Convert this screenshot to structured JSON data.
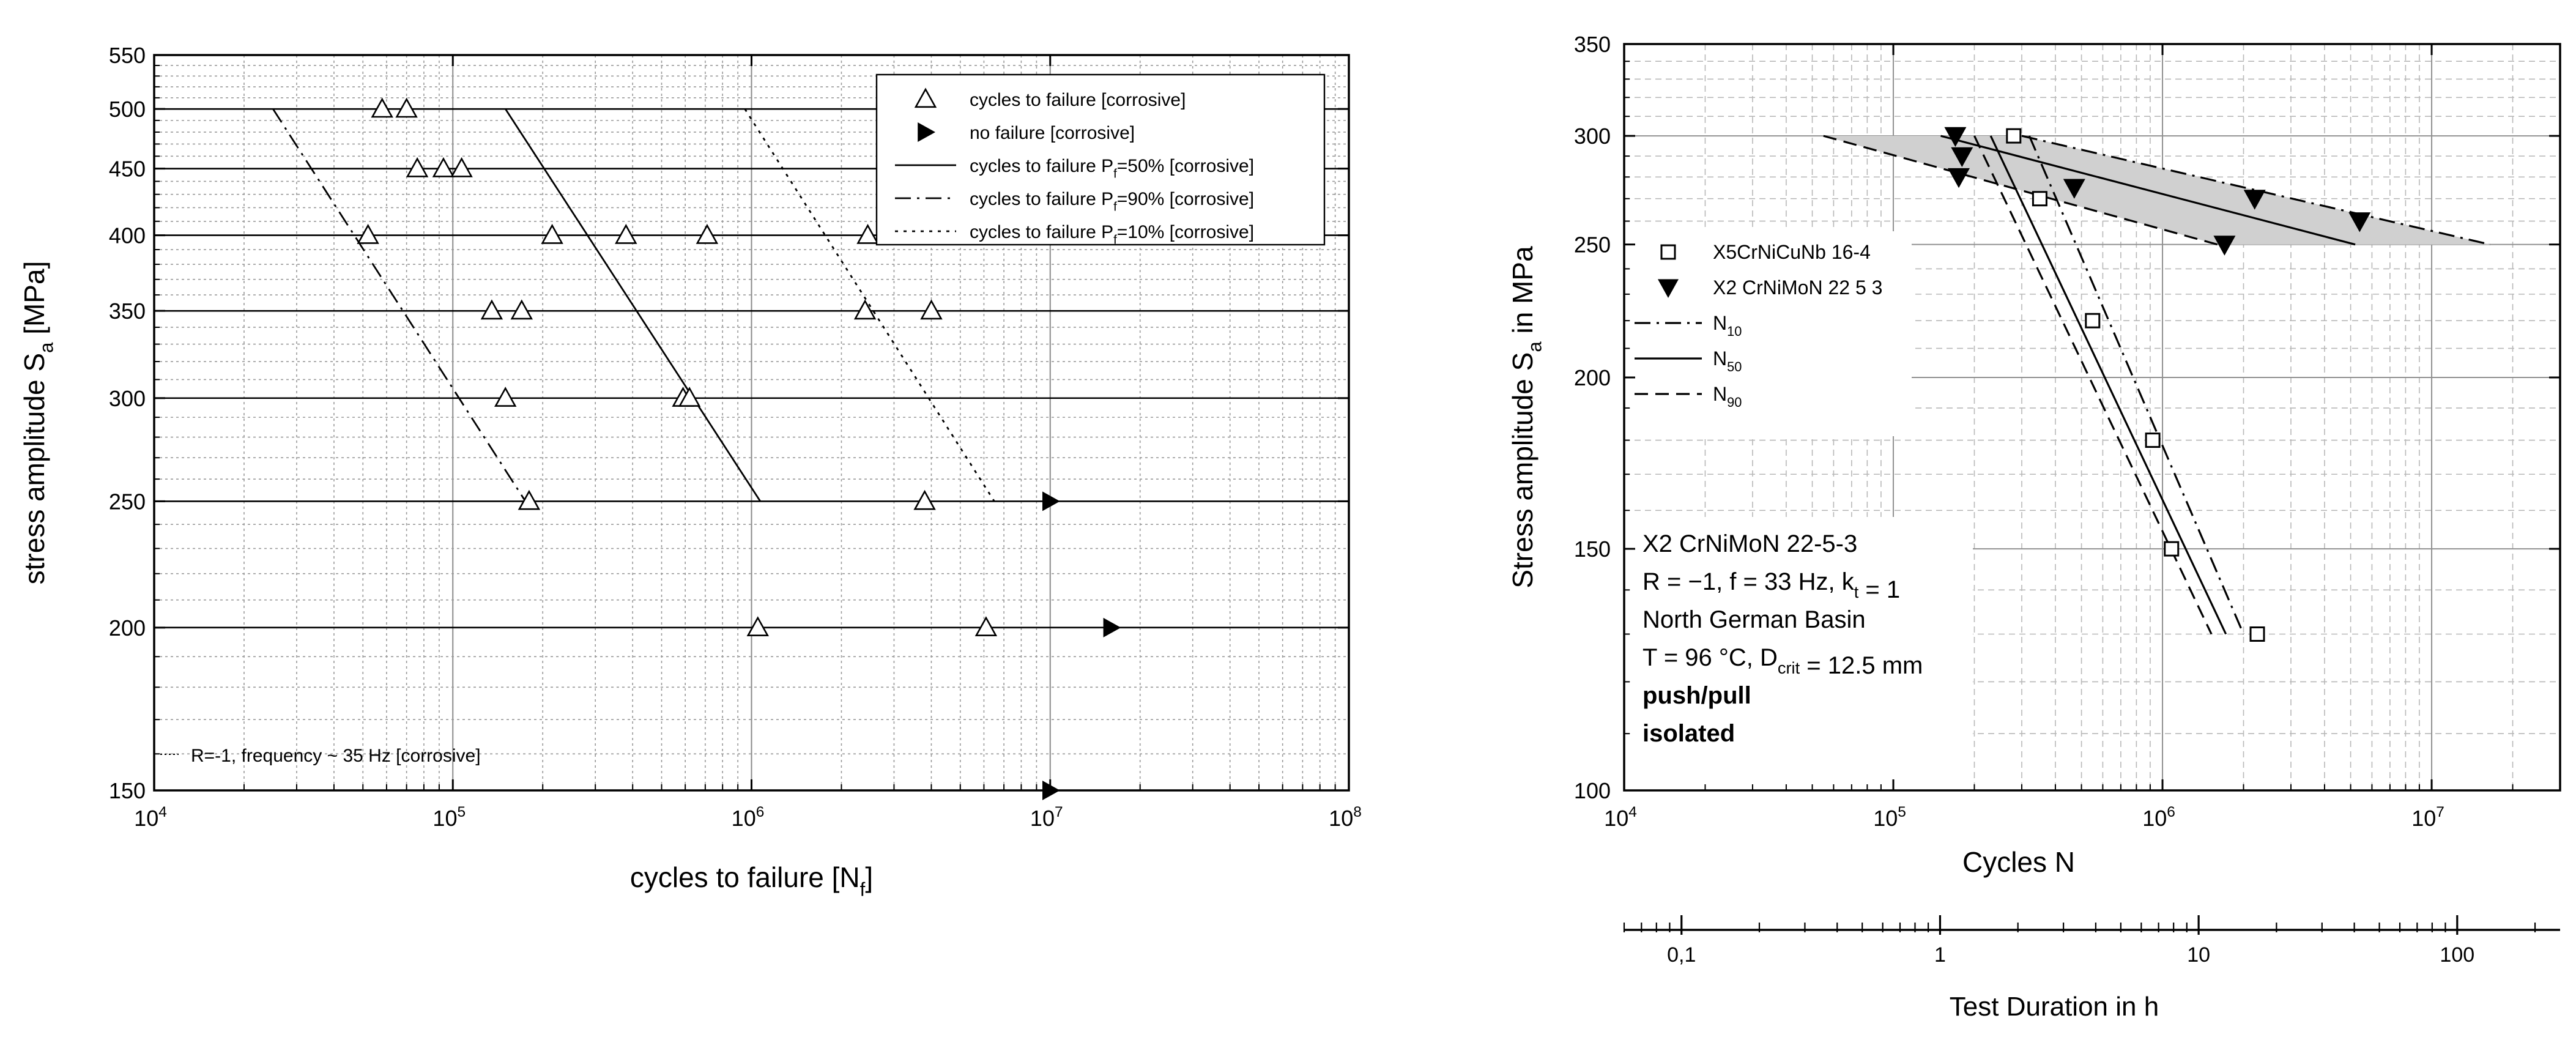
{
  "chart_data": [
    {
      "type": "scatter",
      "xscale": "log",
      "yscale": "log",
      "xlim": [
        10000,
        100000000
      ],
      "ylim": [
        150,
        550
      ],
      "grid": true,
      "xlabel": "cycles to failure [N",
      "xlabel_sub": "f",
      "xlabel_end": "]",
      "ylabel": "stress amplitude S",
      "ylabel_sub": "a",
      "ylabel_end": " [MPa]",
      "xticks": [
        {
          "v": 10000,
          "b": "10",
          "e": "4"
        },
        {
          "v": 100000,
          "b": "10",
          "e": "5"
        },
        {
          "v": 1000000,
          "b": "10",
          "e": "6"
        },
        {
          "v": 10000000,
          "b": "10",
          "e": "7"
        },
        {
          "v": 100000000,
          "b": "10",
          "e": "8"
        }
      ],
      "yticks": [
        "150",
        "200",
        "250",
        "300",
        "350",
        "400",
        "450",
        "500",
        "550"
      ],
      "hlines": [
        500,
        450,
        400,
        350,
        300,
        250,
        200
      ],
      "series": [
        {
          "name": "cycles to failure [corrosive]",
          "marker": "triangle-open",
          "points": [
            [
              58000,
              500
            ],
            [
              70000,
              500
            ],
            [
              76000,
              450
            ],
            [
              93000,
              450
            ],
            [
              107000,
              450
            ],
            [
              52000,
              400
            ],
            [
              215000,
              400
            ],
            [
              380000,
              400
            ],
            [
              710000,
              400
            ],
            [
              2450000,
              400
            ],
            [
              135000,
              350
            ],
            [
              170000,
              350
            ],
            [
              2400000,
              350
            ],
            [
              4000000,
              350
            ],
            [
              150000,
              300
            ],
            [
              590000,
              300
            ],
            [
              620000,
              300
            ],
            [
              180000,
              250
            ],
            [
              3800000,
              250
            ],
            [
              1050000,
              200
            ],
            [
              6100000,
              200
            ]
          ]
        },
        {
          "name": "no failure [corrosive]",
          "marker": "triangle-right-filled",
          "points": [
            [
              10000000,
              250
            ],
            [
              16000000,
              200
            ],
            [
              10000000,
              150
            ]
          ]
        },
        {
          "name": "cycles to failure P",
          "sub": "f",
          "tail": "=50% [corrosive]",
          "style": "solid",
          "points": [
            [
              150000,
              500
            ],
            [
              1070000,
              250
            ]
          ]
        },
        {
          "name": "cycles to failure P",
          "sub": "f",
          "tail": "=90% [corrosive]",
          "style": "dashdot",
          "points": [
            [
              25000,
              500
            ],
            [
              175000,
              250
            ]
          ]
        },
        {
          "name": "cycles to failure P",
          "sub": "f",
          "tail": "=10% [corrosive]",
          "style": "dotted",
          "points": [
            [
              950000,
              500
            ],
            [
              6500000,
              250
            ]
          ]
        }
      ],
      "legend_position": "top-right",
      "annotation": "R=-1, frequency ~ 35 Hz [corrosive]"
    },
    {
      "type": "line",
      "xscale": "log",
      "yscale": "log",
      "xlim": [
        10000,
        30000000
      ],
      "ylim": [
        100,
        350
      ],
      "grid": true,
      "xlabel": "Cycles N",
      "ylabel": "Stress amplitude S",
      "ylabel_sub": "a",
      "ylabel_end": " in MPa",
      "xticks": [
        {
          "v": 10000,
          "b": "10",
          "e": "4"
        },
        {
          "v": 100000,
          "b": "10",
          "e": "5"
        },
        {
          "v": 1000000,
          "b": "10",
          "e": "6"
        },
        {
          "v": 10000000,
          "b": "10",
          "e": "7"
        }
      ],
      "yticks": [
        "100",
        "150",
        "200",
        "250",
        "300",
        "350"
      ],
      "secondary_axis": {
        "label": "Test Duration in h",
        "ticks": [
          "0,1",
          "1",
          "10",
          "100"
        ],
        "xlim": [
          0.06,
          250
        ]
      },
      "band": {
        "upper": [
          [
            300000,
            300
          ],
          [
            16500000,
            250
          ]
        ],
        "lower": [
          [
            55000,
            300
          ],
          [
            1600000,
            250
          ]
        ]
      },
      "series": [
        {
          "name": "X5CrNiCuNb 16-4",
          "marker": "square-open",
          "points": [
            [
              280000,
              300
            ],
            [
              350000,
              270
            ],
            [
              550000,
              220
            ],
            [
              920000,
              180
            ],
            [
              1080000,
              150
            ],
            [
              2250000,
              130
            ]
          ]
        },
        {
          "name": "X2 CrNiMoN 22 5 3",
          "marker": "triangle-down-filled",
          "points": [
            [
              170000,
              300
            ],
            [
              180000,
              290
            ],
            [
              175000,
              280
            ],
            [
              470000,
              275
            ],
            [
              2200000,
              270
            ],
            [
              5400000,
              260
            ],
            [
              1700000,
              250
            ]
          ]
        },
        {
          "name": "N",
          "sub": "10",
          "style": "dashdot",
          "line": [
            [
              [
                320000,
                300
              ],
              [
                2000000,
                130
              ]
            ],
            [
              [
                300000,
                300
              ],
              [
                16500000,
                250
              ]
            ]
          ]
        },
        {
          "name": "N",
          "sub": "50",
          "style": "solid",
          "line": [
            [
              [
                230000,
                300
              ],
              [
                1720000,
                130
              ]
            ],
            [
              [
                150000,
                300
              ],
              [
                5200000,
                250
              ]
            ]
          ]
        },
        {
          "name": "N",
          "sub": "90",
          "style": "dashed",
          "line": [
            [
              [
                200000,
                300
              ],
              [
                1520000,
                130
              ]
            ],
            [
              [
                55000,
                300
              ],
              [
                1600000,
                250
              ]
            ]
          ]
        }
      ],
      "legend_position": "left",
      "annotations": [
        {
          "parts": [
            {
              "t": "X2 CrNiMoN 22-5-3"
            }
          ]
        },
        {
          "parts": [
            {
              "t": "R = −1, f = 33 Hz, k"
            },
            {
              "t": "t",
              "sub": true
            },
            {
              "t": " = 1"
            }
          ]
        },
        {
          "parts": [
            {
              "t": "North German Basin"
            }
          ]
        },
        {
          "parts": [
            {
              "t": "T = 96 °C, D"
            },
            {
              "t": "crit",
              "sub": true
            },
            {
              "t": " = 12.5 mm"
            }
          ]
        },
        {
          "parts": [
            {
              "t": "push/pull"
            }
          ],
          "bold": true
        },
        {
          "parts": [
            {
              "t": "isolated"
            }
          ],
          "bold": true
        }
      ]
    }
  ]
}
